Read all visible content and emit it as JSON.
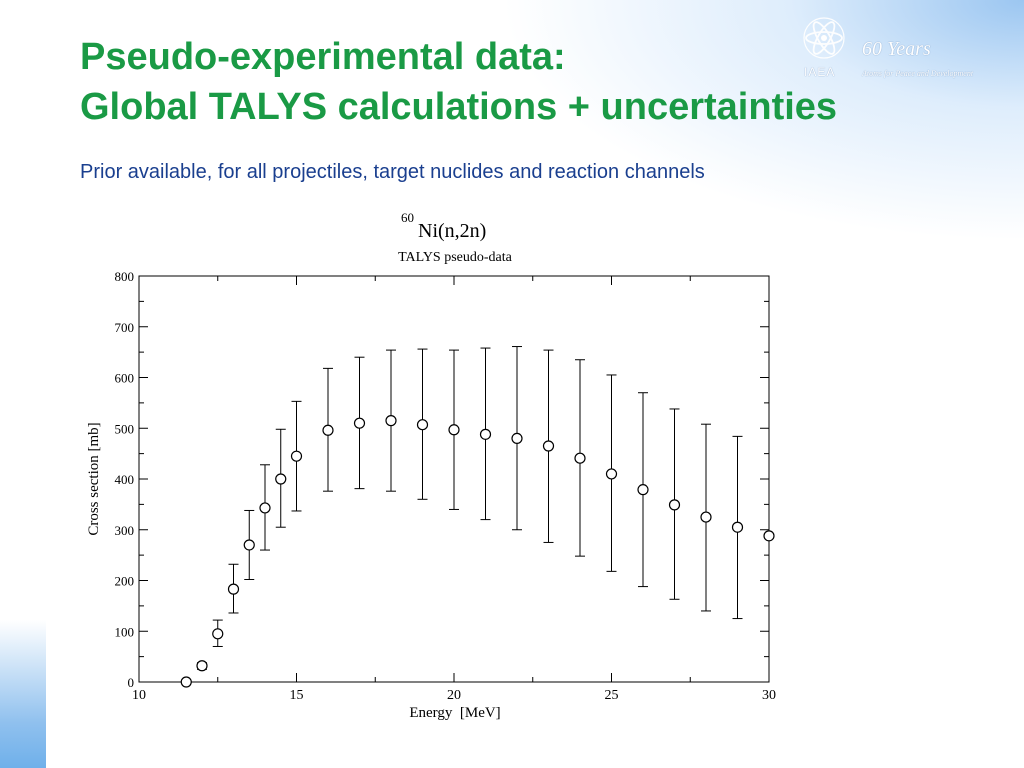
{
  "slide": {
    "title_line1": "Pseudo-experimental data:",
    "title_line2": "Global TALYS calculations + uncertainties",
    "subtitle": "Prior available, for all projectiles, target nuclides and reaction channels",
    "title_color": "#1a9a45",
    "subtitle_color": "#1a3f8f"
  },
  "logo": {
    "years": "60 Years",
    "org": "IAEA",
    "motto": "Atoms for Peace and Development"
  },
  "chart_data": {
    "type": "scatter",
    "title_mass": "60",
    "title_main": "Ni(n,2n)",
    "subtitle": "TALYS pseudo-data",
    "xlabel": "Energy  [MeV]",
    "ylabel": "Cross section [mb]",
    "xlim": [
      10,
      30
    ],
    "ylim": [
      0,
      800
    ],
    "xticks": [
      10,
      15,
      20,
      25,
      30
    ],
    "yticks": [
      0,
      100,
      200,
      300,
      400,
      500,
      600,
      700,
      800
    ],
    "grid": false,
    "marker": "open-circle",
    "points": [
      {
        "x": 11.5,
        "y": 0,
        "lo": 0,
        "hi": 0
      },
      {
        "x": 12,
        "y": 32,
        "lo": 25,
        "hi": 38
      },
      {
        "x": 12.5,
        "y": 95,
        "lo": 70,
        "hi": 122
      },
      {
        "x": 13,
        "y": 183,
        "lo": 136,
        "hi": 232
      },
      {
        "x": 13.5,
        "y": 270,
        "lo": 202,
        "hi": 338
      },
      {
        "x": 14,
        "y": 343,
        "lo": 260,
        "hi": 428
      },
      {
        "x": 14.5,
        "y": 400,
        "lo": 305,
        "hi": 498
      },
      {
        "x": 15,
        "y": 445,
        "lo": 337,
        "hi": 553
      },
      {
        "x": 16,
        "y": 496,
        "lo": 376,
        "hi": 618
      },
      {
        "x": 17,
        "y": 510,
        "lo": 381,
        "hi": 640
      },
      {
        "x": 18,
        "y": 515,
        "lo": 376,
        "hi": 654
      },
      {
        "x": 19,
        "y": 507,
        "lo": 360,
        "hi": 656
      },
      {
        "x": 20,
        "y": 497,
        "lo": 340,
        "hi": 654
      },
      {
        "x": 21,
        "y": 488,
        "lo": 320,
        "hi": 658
      },
      {
        "x": 22,
        "y": 480,
        "lo": 300,
        "hi": 661
      },
      {
        "x": 23,
        "y": 465,
        "lo": 275,
        "hi": 654
      },
      {
        "x": 24,
        "y": 441,
        "lo": 248,
        "hi": 635
      },
      {
        "x": 25,
        "y": 410,
        "lo": 218,
        "hi": 605
      },
      {
        "x": 26,
        "y": 379,
        "lo": 188,
        "hi": 570
      },
      {
        "x": 27,
        "y": 349,
        "lo": 163,
        "hi": 538
      },
      {
        "x": 28,
        "y": 325,
        "lo": 140,
        "hi": 508
      },
      {
        "x": 29,
        "y": 305,
        "lo": 125,
        "hi": 484
      },
      {
        "x": 30,
        "y": 288,
        "lo": 288,
        "hi": 288
      }
    ]
  }
}
